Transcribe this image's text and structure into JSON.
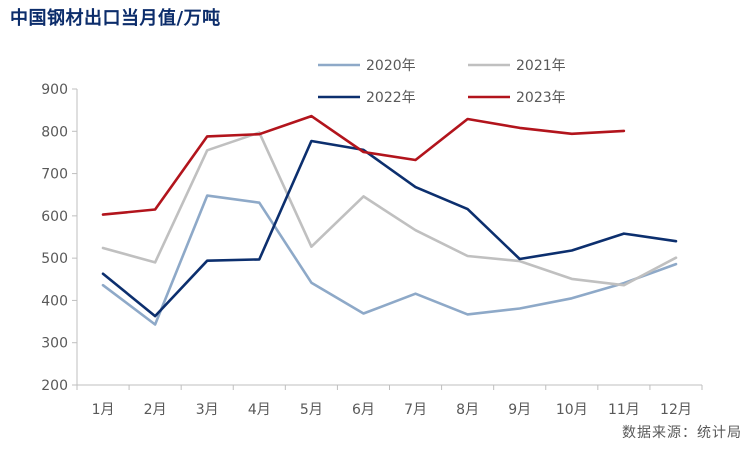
{
  "chart_title": "中国钢材出口当月值/万吨",
  "source": "数据来源：统计局",
  "chart_data": {
    "type": "line",
    "title": "中国钢材出口当月值/万吨",
    "categories": [
      "1月",
      "2月",
      "3月",
      "4月",
      "5月",
      "6月",
      "7月",
      "8月",
      "9月",
      "10月",
      "11月",
      "12月"
    ],
    "ylim": [
      200,
      900
    ],
    "yticks": [
      200,
      300,
      400,
      500,
      600,
      700,
      800,
      900
    ],
    "grid": false,
    "legend_position": "top",
    "series": [
      {
        "name": "2020年",
        "color": "#8ea9c8",
        "values": [
          436,
          343,
          648,
          631,
          442,
          369,
          416,
          367,
          381,
          405,
          441,
          486
        ]
      },
      {
        "name": "2021年",
        "color": "#c0c0c0",
        "values": [
          524,
          490,
          755,
          797,
          527,
          646,
          566,
          505,
          493,
          451,
          436,
          501
        ]
      },
      {
        "name": "2022年",
        "color": "#0c2f6e",
        "values": [
          463,
          363,
          494,
          497,
          777,
          756,
          668,
          616,
          498,
          518,
          558,
          540
        ]
      },
      {
        "name": "2023年",
        "color": "#b2141c",
        "values": [
          603,
          615,
          788,
          793,
          836,
          751,
          732,
          829,
          808,
          794,
          801,
          null
        ]
      }
    ]
  }
}
